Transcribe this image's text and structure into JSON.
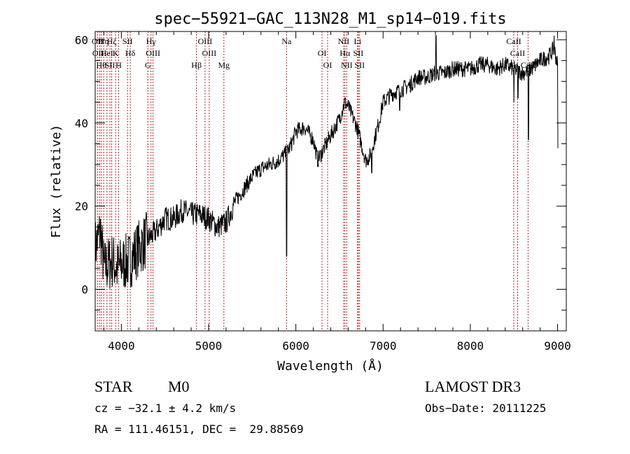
{
  "chart_data": {
    "type": "line",
    "title": "spec−55921−GAC_113N28_M1_sp14−019.fits",
    "xlabel": "Wavelength (Å)",
    "ylabel": "Flux (relative)",
    "xlim": [
      3700,
      9100
    ],
    "ylim": [
      -10,
      62
    ],
    "xticks": [
      4000,
      5000,
      6000,
      7000,
      8000,
      9000
    ],
    "yticks": [
      0,
      20,
      40,
      60
    ],
    "series": [
      {
        "name": "flux",
        "anchors": [
          [
            3700,
            10
          ],
          [
            3760,
            14
          ],
          [
            3800,
            5
          ],
          [
            3850,
            6
          ],
          [
            3900,
            7
          ],
          [
            3950,
            5
          ],
          [
            4000,
            6
          ],
          [
            4100,
            7
          ],
          [
            4200,
            10
          ],
          [
            4300,
            12
          ],
          [
            4400,
            14
          ],
          [
            4500,
            17
          ],
          [
            4600,
            17
          ],
          [
            4700,
            19
          ],
          [
            4800,
            18
          ],
          [
            4900,
            18
          ],
          [
            5000,
            17
          ],
          [
            5100,
            15
          ],
          [
            5200,
            16
          ],
          [
            5300,
            21
          ],
          [
            5400,
            24
          ],
          [
            5500,
            27
          ],
          [
            5600,
            29
          ],
          [
            5700,
            30
          ],
          [
            5800,
            31
          ],
          [
            5850,
            32
          ],
          [
            5900,
            33
          ],
          [
            5950,
            35
          ],
          [
            6000,
            38
          ],
          [
            6100,
            39
          ],
          [
            6200,
            36
          ],
          [
            6250,
            31
          ],
          [
            6300,
            33
          ],
          [
            6400,
            37
          ],
          [
            6500,
            41
          ],
          [
            6560,
            45
          ],
          [
            6600,
            44
          ],
          [
            6700,
            39
          ],
          [
            6750,
            35
          ],
          [
            6800,
            31
          ],
          [
            6850,
            32
          ],
          [
            6900,
            36
          ],
          [
            6950,
            40
          ],
          [
            7000,
            45
          ],
          [
            7100,
            47
          ],
          [
            7200,
            48
          ],
          [
            7300,
            49
          ],
          [
            7400,
            51
          ],
          [
            7500,
            51
          ],
          [
            7600,
            52
          ],
          [
            7700,
            52
          ],
          [
            7800,
            53
          ],
          [
            7900,
            53
          ],
          [
            8000,
            53
          ],
          [
            8100,
            54
          ],
          [
            8200,
            54
          ],
          [
            8300,
            53
          ],
          [
            8400,
            54
          ],
          [
            8500,
            53
          ],
          [
            8600,
            52
          ],
          [
            8700,
            53
          ],
          [
            8800,
            55
          ],
          [
            8900,
            56
          ],
          [
            8960,
            58
          ],
          [
            9000,
            54
          ]
        ],
        "dips": [
          [
            5893,
            8
          ],
          [
            6565,
            46
          ],
          [
            7605,
            61
          ],
          [
            8665,
            36
          ],
          [
            8545,
            46
          ],
          [
            8500,
            45
          ],
          [
            6870,
            28
          ],
          [
            7190,
            43
          ],
          [
            8960,
            61
          ],
          [
            9005,
            34
          ]
        ],
        "noise_seed": 7
      }
    ],
    "lines": [
      {
        "wave": 3727,
        "label": "OII"
      },
      {
        "wave": 3750,
        "label": "OIII"
      },
      {
        "wave": 3770,
        "label": "Hθ"
      },
      {
        "wave": 3797,
        "label": "Hη"
      },
      {
        "wave": 3835,
        "label": "HeI"
      },
      {
        "wave": 3869,
        "label": "SII"
      },
      {
        "wave": 3889,
        "label": "Hζ"
      },
      {
        "wave": 3934,
        "label": "K"
      },
      {
        "wave": 3969,
        "label": "H"
      },
      {
        "wave": 4071,
        "label": "SII"
      },
      {
        "wave": 4102,
        "label": "Hδ"
      },
      {
        "wave": 4304,
        "label": "G"
      },
      {
        "wave": 4340,
        "label": "Hγ"
      },
      {
        "wave": 4363,
        "label": "OIII"
      },
      {
        "wave": 4861,
        "label": "Hβ"
      },
      {
        "wave": 4959,
        "label": "OIII"
      },
      {
        "wave": 5007,
        "label": "OIII"
      },
      {
        "wave": 5175,
        "label": "Mg"
      },
      {
        "wave": 5893,
        "label": "Na"
      },
      {
        "wave": 6300,
        "label": "OI"
      },
      {
        "wave": 6364,
        "label": "OI"
      },
      {
        "wave": 6548,
        "label": "NII"
      },
      {
        "wave": 6563,
        "label": "Hα"
      },
      {
        "wave": 6583,
        "label": "NII"
      },
      {
        "wave": 6708,
        "label": "Li"
      },
      {
        "wave": 6716,
        "label": "SII"
      },
      {
        "wave": 6731,
        "label": "SII"
      },
      {
        "wave": 8498,
        "label": "CaII"
      },
      {
        "wave": 8542,
        "label": "CaII"
      },
      {
        "wave": 8662,
        "label": "CaII"
      }
    ]
  },
  "info": {
    "class": "STAR",
    "subclass": "M0",
    "survey": "LAMOST DR3",
    "cz": "cz = −32.1 ± 4.2 km/s",
    "obs_date": "Obs−Date: 20111225",
    "radec": "RA = 111.46151, DEC =  29.88569"
  }
}
